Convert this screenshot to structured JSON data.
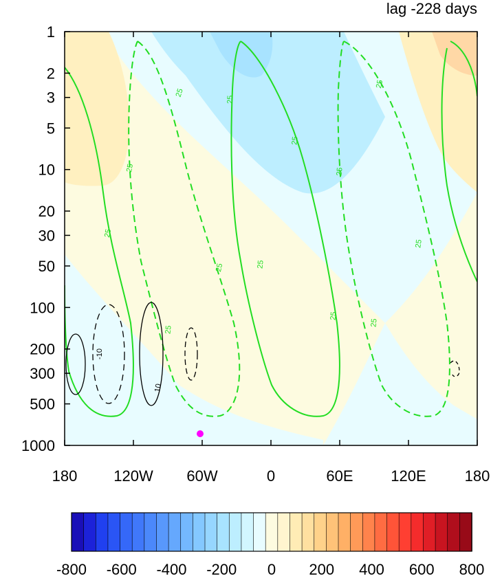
{
  "title": "lag -228 days",
  "chart_data": {
    "type": "contour",
    "title": "lag -228 days",
    "x_ticks": [
      "180",
      "120W",
      "60W",
      "0",
      "60E",
      "120E",
      "180"
    ],
    "x_tick_values": [
      -180,
      -120,
      -60,
      0,
      60,
      120,
      180
    ],
    "y_ticks": [
      "1",
      "2",
      "3",
      "5",
      "10",
      "20",
      "30",
      "50",
      "100",
      "200",
      "300",
      "500",
      "1000"
    ],
    "y_tick_values": [
      1,
      2,
      3,
      5,
      10,
      20,
      30,
      50,
      100,
      200,
      300,
      500,
      1000
    ],
    "y_scale": "log",
    "y_reversed": true,
    "colorbar": {
      "levels": [
        -800,
        -750,
        -700,
        -650,
        -600,
        -550,
        -500,
        -450,
        -400,
        -350,
        -300,
        -250,
        -200,
        -150,
        -100,
        -50,
        0,
        50,
        100,
        150,
        200,
        250,
        300,
        350,
        400,
        450,
        500,
        550,
        600,
        650,
        700,
        750,
        800
      ],
      "labels": [
        "-800",
        "-600",
        "-400",
        "-200",
        "0",
        "200",
        "400",
        "600",
        "800"
      ],
      "label_values": [
        -800,
        -600,
        -400,
        -200,
        0,
        200,
        400,
        600,
        800
      ],
      "colors": [
        "#1a0fb8",
        "#1c22d9",
        "#2040f0",
        "#2a55f5",
        "#3568f8",
        "#4078fa",
        "#4b88fb",
        "#5898fc",
        "#65a8fd",
        "#74b8fe",
        "#84c8ff",
        "#96d6ff",
        "#a8e3ff",
        "#bdeeff",
        "#d2f6ff",
        "#e8fcff",
        "#fdfbe0",
        "#fff5cf",
        "#ffecb5",
        "#ffe0a0",
        "#ffd28a",
        "#ffc278",
        "#ffb066",
        "#ff9a58",
        "#ff834c",
        "#ff6c42",
        "#ff5438",
        "#ff3f32",
        "#f52c2c",
        "#e01e26",
        "#c81420",
        "#b00e1c",
        "#980a18"
      ]
    },
    "contour_labels_green": [
      "25",
      "25",
      "25",
      "25",
      "25",
      "25",
      "25",
      "25",
      "25",
      "25",
      "25",
      "25",
      "25"
    ],
    "contour_labels_black": [
      "-10",
      "10"
    ],
    "marker_color": "#ff00ff",
    "line_colors": {
      "green": "#22dd22",
      "black": "#000000"
    }
  }
}
